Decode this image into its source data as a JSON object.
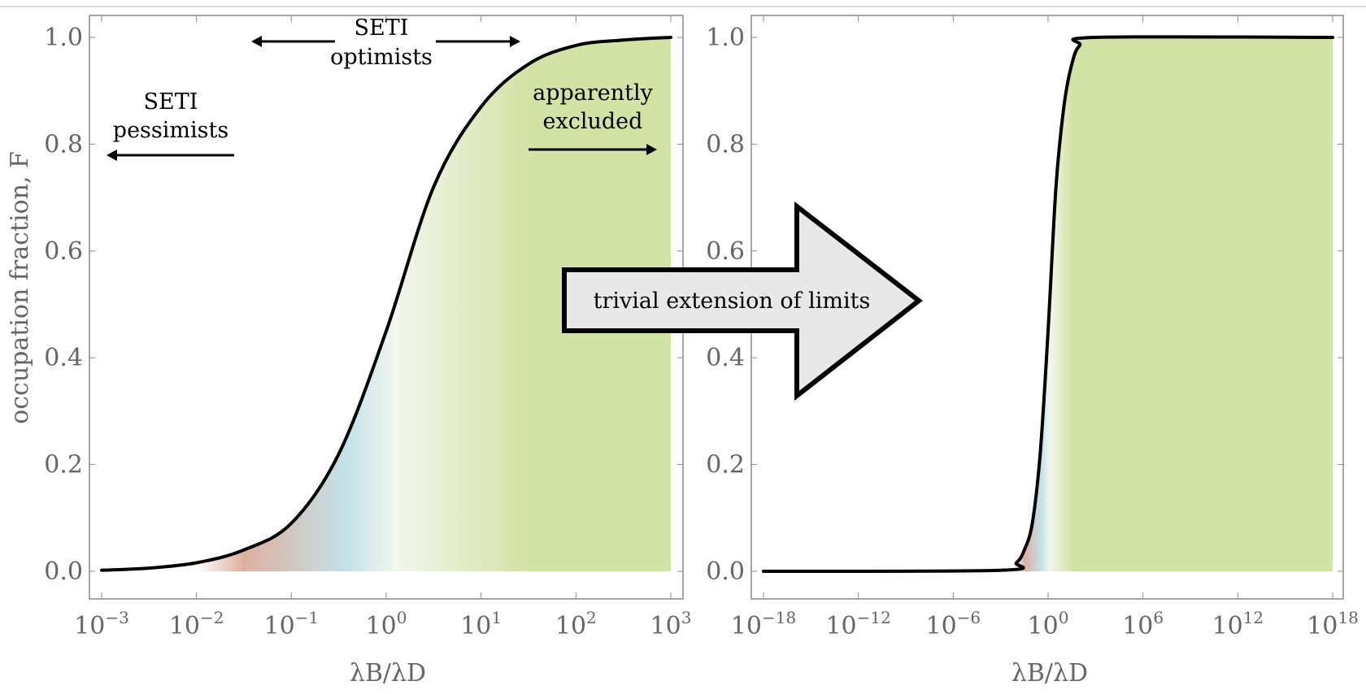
{
  "chart_data": [
    {
      "type": "line",
      "title": "",
      "xlabel": "λB/λD",
      "ylabel": "occupation fraction, F",
      "xscale": "log",
      "xlim": [
        0.001,
        1000.0
      ],
      "ylim": [
        0,
        1
      ],
      "x_tick_labels": [
        [
          "10",
          "−3"
        ],
        [
          "10",
          "−2"
        ],
        [
          "10",
          "−1"
        ],
        [
          "10",
          "0"
        ],
        [
          "10",
          "1"
        ],
        [
          "10",
          "2"
        ],
        [
          "10",
          "3"
        ]
      ],
      "x_tick_exponents": [
        -3,
        -2,
        -1,
        0,
        1,
        2,
        3
      ],
      "y_ticks": [
        "0.0",
        "0.2",
        "0.4",
        "0.6",
        "0.8",
        "1.0"
      ],
      "series": [
        {
          "name": "F",
          "log10_x": [
            -3,
            -2.5,
            -2,
            -1.5,
            -1,
            -0.5,
            0,
            0.5,
            1,
            1.5,
            2,
            2.5,
            3
          ],
          "y": [
            0.002,
            0.006,
            0.016,
            0.04,
            0.09,
            0.22,
            0.45,
            0.72,
            0.87,
            0.95,
            0.985,
            0.995,
            1.0
          ]
        }
      ],
      "annotations": {
        "optimists": [
          "SETI",
          "optimists"
        ],
        "pessimists": [
          "SETI",
          "pessimists"
        ],
        "excluded": [
          "apparently",
          "excluded"
        ]
      },
      "fill_gradient": [
        {
          "log10_x": -2,
          "color": "#ffffff"
        },
        {
          "log10_x": -1.5,
          "color": "#dcb0a0"
        },
        {
          "log10_x": -0.4,
          "color": "#c5e2ea"
        },
        {
          "log10_x": 0.1,
          "color": "#f2f6ee"
        },
        {
          "log10_x": 1.5,
          "color": "#d3e2a5"
        }
      ]
    },
    {
      "type": "line",
      "title": "",
      "xlabel": "λB/λD",
      "ylabel": "",
      "xscale": "log",
      "xlim": [
        1e-18,
        1e+18
      ],
      "ylim": [
        0,
        1
      ],
      "x_tick_labels": [
        [
          "10",
          "−18"
        ],
        [
          "10",
          "−12"
        ],
        [
          "10",
          "−6"
        ],
        [
          "10",
          "0"
        ],
        [
          "10",
          "6"
        ],
        [
          "10",
          "12"
        ],
        [
          "10",
          "18"
        ]
      ],
      "x_tick_exponents": [
        -18,
        -12,
        -6,
        0,
        6,
        12,
        18
      ],
      "y_ticks": [
        "0.0",
        "0.2",
        "0.4",
        "0.6",
        "0.8",
        "1.0"
      ],
      "series": [
        {
          "name": "F",
          "log10_x": [
            -18,
            -3,
            -2,
            -1.5,
            -1,
            -0.5,
            0,
            0.5,
            1,
            1.5,
            2,
            3,
            18
          ],
          "y": [
            0,
            0.002,
            0.016,
            0.04,
            0.09,
            0.22,
            0.45,
            0.72,
            0.87,
            0.95,
            0.985,
            1.0,
            1.0
          ]
        }
      ],
      "fill_gradient": [
        {
          "log10_x": -2,
          "color": "#ffffff"
        },
        {
          "log10_x": -1.5,
          "color": "#dcb0a0"
        },
        {
          "log10_x": -0.4,
          "color": "#c5e2ea"
        },
        {
          "log10_x": 0.1,
          "color": "#f2f6ee"
        },
        {
          "log10_x": 1.5,
          "color": "#d3e2a5"
        }
      ]
    }
  ],
  "callout": {
    "label": "trivial extension of limits",
    "fill": "#e8e8e8"
  }
}
